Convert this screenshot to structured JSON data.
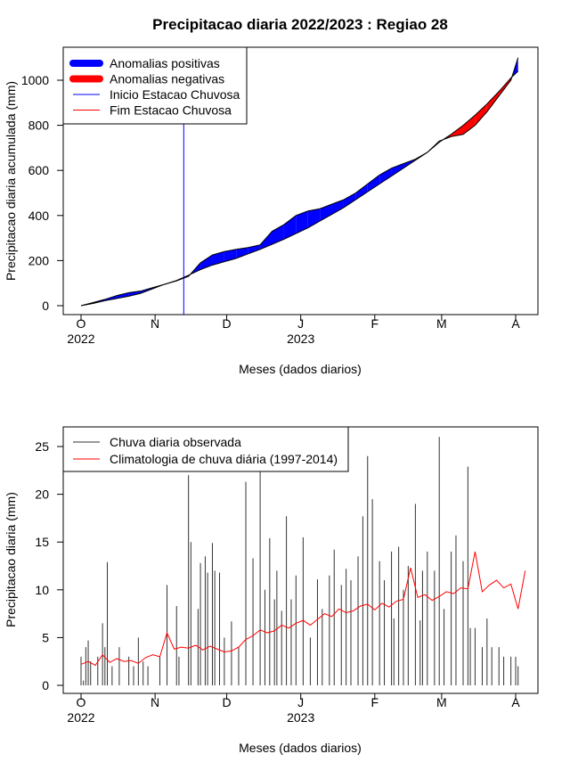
{
  "chart_data": [
    {
      "type": "area",
      "title": "Precipitacao diaria 2022/2023 : Regiao 28",
      "xlabel": "Meses (dados diarios)",
      "ylabel": "Precipitacao diaria acumulada (mm)",
      "ylim": [
        0,
        1100
      ],
      "yticks": [
        0,
        200,
        400,
        600,
        800,
        1000
      ],
      "month_ticks": [
        {
          "label": "O",
          "day": 0,
          "year": "2022"
        },
        {
          "label": "N",
          "day": 31
        },
        {
          "label": "D",
          "day": 61
        },
        {
          "label": "J",
          "day": 92,
          "year": "2023"
        },
        {
          "label": "F",
          "day": 123
        },
        {
          "label": "M",
          "day": 151
        },
        {
          "label": "A",
          "day": 182
        }
      ],
      "legend_position": "top-left",
      "legend": [
        {
          "label": "Anomalias positivas",
          "color": "#0000ff",
          "style": "thick"
        },
        {
          "label": "Anomalias negativas",
          "color": "#ff0000",
          "style": "thick"
        },
        {
          "label": "Inicio Estacao Chuvosa",
          "color": "#0000ff",
          "style": "thin"
        },
        {
          "label": "Fim Estacao Chuvosa",
          "color": "#ff0000",
          "style": "thin"
        }
      ],
      "rainy_season_start_day": 43,
      "series": [
        {
          "name": "observed_cumulative",
          "x": [
            0,
            5,
            10,
            15,
            20,
            25,
            30,
            35,
            40,
            45,
            50,
            55,
            60,
            65,
            70,
            75,
            80,
            85,
            90,
            95,
            100,
            105,
            110,
            115,
            120,
            125,
            130,
            135,
            140,
            145,
            150,
            155,
            160,
            165,
            170,
            175,
            180,
            183
          ],
          "y": [
            0,
            14,
            28,
            45,
            58,
            65,
            80,
            95,
            110,
            130,
            190,
            225,
            240,
            250,
            258,
            270,
            330,
            360,
            400,
            420,
            430,
            450,
            470,
            500,
            540,
            580,
            610,
            630,
            650,
            680,
            730,
            750,
            760,
            800,
            860,
            930,
            1000,
            1100
          ]
        },
        {
          "name": "climatology_cumulative",
          "x": [
            0,
            5,
            10,
            15,
            20,
            25,
            30,
            35,
            40,
            45,
            50,
            55,
            60,
            65,
            70,
            75,
            80,
            85,
            90,
            95,
            100,
            105,
            110,
            115,
            120,
            125,
            130,
            135,
            140,
            145,
            150,
            155,
            160,
            165,
            170,
            175,
            180,
            183
          ],
          "y": [
            0,
            10,
            22,
            32,
            42,
            55,
            75,
            95,
            112,
            135,
            160,
            180,
            195,
            210,
            230,
            250,
            272,
            295,
            320,
            345,
            375,
            405,
            435,
            470,
            505,
            540,
            575,
            610,
            645,
            680,
            725,
            760,
            800,
            845,
            895,
            950,
            1010,
            1040
          ]
        }
      ]
    },
    {
      "type": "bar",
      "xlabel": "Meses (dados diarios)",
      "ylabel": "Precipitacao diaria (mm)",
      "ylim": [
        0,
        27
      ],
      "yticks": [
        0,
        5,
        10,
        15,
        20,
        25
      ],
      "month_ticks": [
        {
          "label": "O",
          "day": 0,
          "year": "2022"
        },
        {
          "label": "N",
          "day": 31
        },
        {
          "label": "D",
          "day": 61
        },
        {
          "label": "J",
          "day": 92,
          "year": "2023"
        },
        {
          "label": "F",
          "day": 123
        },
        {
          "label": "M",
          "day": 151
        },
        {
          "label": "A",
          "day": 182
        }
      ],
      "legend_position": "top-left",
      "legend": [
        {
          "label": "Chuva diaria observada",
          "color": "#333333"
        },
        {
          "label": "Climatologia de chuva diária (1997-2014)",
          "color": "#ff0000"
        }
      ],
      "series": [
        {
          "name": "observed_daily",
          "x": [
            0,
            1,
            2,
            3,
            4,
            7,
            9,
            10,
            11,
            13,
            16,
            20,
            22,
            24,
            26,
            28,
            33,
            36,
            40,
            41,
            45,
            46,
            49,
            50,
            52,
            53,
            55,
            56,
            58,
            60,
            63,
            66,
            69,
            72,
            75,
            77,
            79,
            81,
            82,
            84,
            86,
            88,
            90,
            93,
            96,
            99,
            101,
            104,
            106,
            109,
            111,
            113,
            116,
            118,
            120,
            122,
            125,
            127,
            130,
            131,
            133,
            135,
            137,
            140,
            142,
            143,
            145,
            148,
            150,
            152,
            155,
            157,
            160,
            162,
            163,
            165,
            168,
            170,
            172,
            175,
            177,
            180,
            182,
            183
          ],
          "y": [
            3,
            0.5,
            4,
            4.7,
            2.5,
            3,
            6.5,
            4,
            12.9,
            2,
            4,
            3,
            2,
            5,
            2.5,
            2,
            3,
            10.5,
            8.3,
            3,
            22,
            15,
            8,
            12.8,
            13.5,
            11.8,
            14.9,
            12,
            11.8,
            5,
            6.7,
            4,
            21.3,
            13.3,
            23,
            10,
            15.4,
            9,
            12,
            7.8,
            17.7,
            9,
            11.5,
            15.5,
            5,
            11.1,
            8,
            11.5,
            14.2,
            10.5,
            12.2,
            11,
            13.5,
            17.7,
            24,
            19.5,
            13,
            11,
            14,
            7,
            14.5,
            10,
            12.5,
            19,
            6.8,
            12,
            14,
            12,
            26,
            8,
            14,
            15.7,
            13,
            22.9,
            6,
            6,
            4,
            7,
            4,
            4,
            3,
            3,
            3,
            2
          ]
        },
        {
          "name": "climatology_daily",
          "x": [
            0,
            3,
            6,
            9,
            12,
            15,
            18,
            21,
            24,
            27,
            30,
            33,
            36,
            39,
            42,
            45,
            48,
            51,
            54,
            57,
            60,
            63,
            66,
            69,
            72,
            75,
            78,
            81,
            84,
            87,
            90,
            93,
            96,
            99,
            102,
            105,
            108,
            111,
            114,
            117,
            120,
            123,
            126,
            129,
            132,
            135,
            138,
            141,
            144,
            147,
            150,
            153,
            156,
            159,
            162,
            165,
            168,
            171,
            174,
            177,
            180,
            183,
            186
          ],
          "y": [
            2.2,
            2.5,
            2.1,
            3.2,
            2.4,
            2.8,
            2.5,
            2.6,
            2.3,
            2.9,
            3.2,
            3.0,
            5.5,
            3.8,
            4.0,
            3.9,
            4.2,
            3.7,
            4.1,
            3.8,
            3.5,
            3.6,
            4.0,
            4.8,
            5.2,
            5.8,
            5.5,
            5.7,
            6.3,
            6.0,
            6.5,
            6.8,
            6.3,
            6.9,
            7.5,
            7.2,
            8.0,
            7.6,
            7.8,
            8.3,
            8.5,
            7.9,
            8.6,
            8.2,
            8.8,
            9.0,
            12.3,
            9.2,
            9.5,
            8.9,
            9.3,
            9.8,
            9.6,
            10.2,
            10.1,
            14.0,
            9.8,
            10.5,
            11.0,
            10.2,
            10.6,
            8.0,
            12.0
          ]
        }
      ]
    }
  ]
}
